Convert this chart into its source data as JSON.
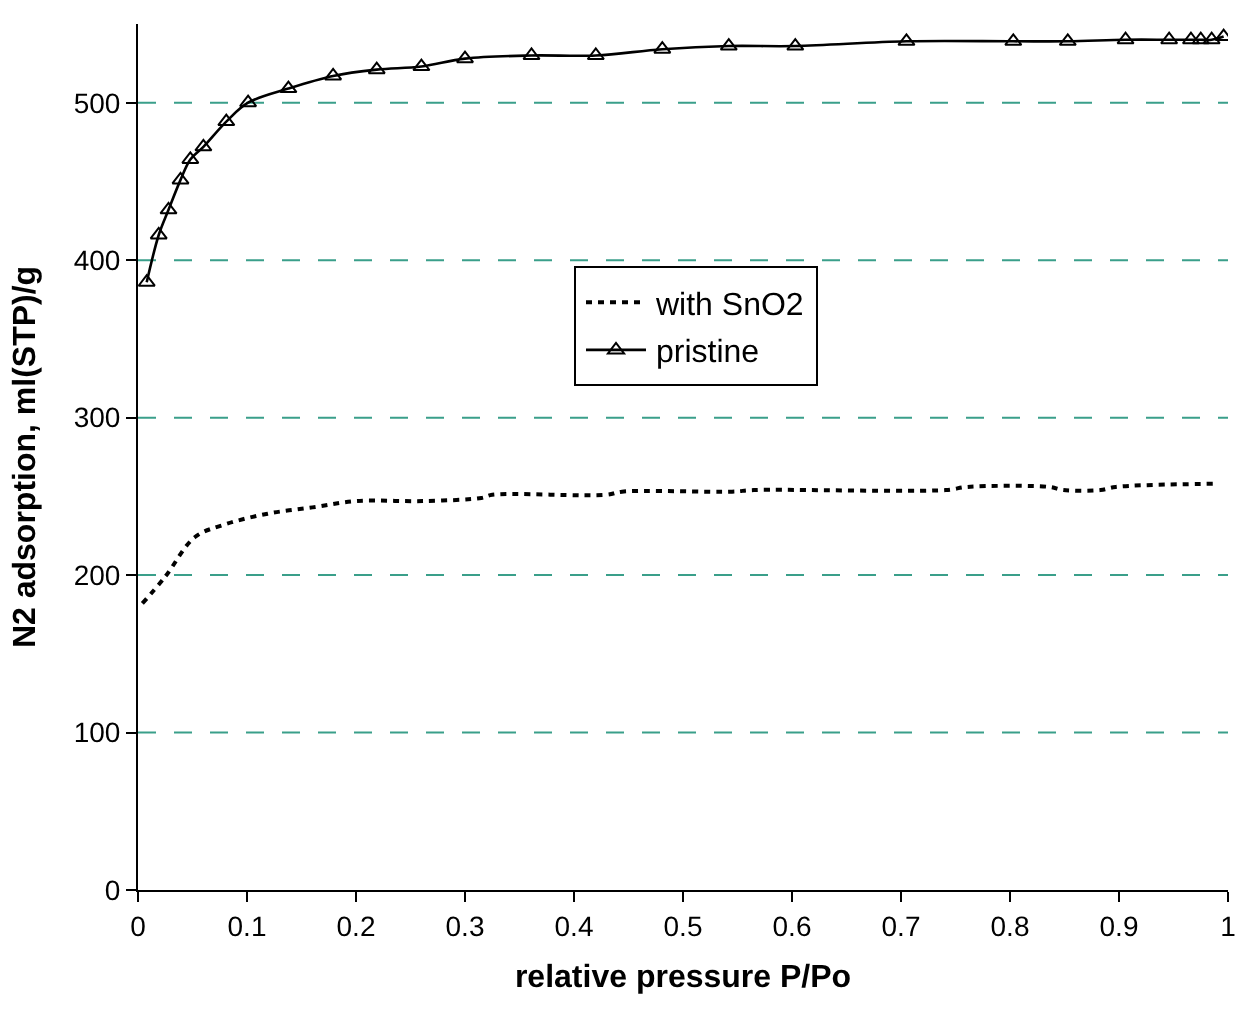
{
  "chart_data": {
    "type": "line",
    "xlabel": "relative pressure P/Po",
    "ylabel": "N2 adsorption, ml(STP)/g",
    "xlim": [
      0,
      1
    ],
    "xticks": [
      0,
      0.1,
      0.2,
      0.3,
      0.4,
      0.5,
      0.6,
      0.7,
      0.8,
      0.9,
      1
    ],
    "ylim": [
      0,
      550
    ],
    "yticks": [
      0,
      100,
      200,
      300,
      400,
      500
    ],
    "grid": "y",
    "legend": "right",
    "series": [
      {
        "name": "with SnO2",
        "color": "#000000",
        "line_style": "dotted",
        "marker": "none",
        "x": [
          0.004,
          0.025,
          0.052,
          0.079,
          0.119,
          0.16,
          0.2,
          0.261,
          0.315,
          0.325,
          0.43,
          0.444,
          0.545,
          0.565,
          0.741,
          0.761,
          0.836,
          0.849,
          0.883,
          0.897,
          0.988
        ],
        "values": [
          182,
          199,
          224,
          232,
          239,
          243,
          247,
          247,
          249,
          251,
          251,
          253,
          253,
          254,
          254,
          256,
          256,
          254,
          254,
          256,
          258
        ]
      },
      {
        "name": "pristine",
        "color": "#000000",
        "line_style": "solid",
        "marker": "triangle",
        "x": [
          0.008,
          0.019,
          0.028,
          0.039,
          0.048,
          0.06,
          0.081,
          0.101,
          0.138,
          0.179,
          0.219,
          0.26,
          0.3,
          0.361,
          0.42,
          0.481,
          0.542,
          0.603,
          0.705,
          0.803,
          0.853,
          0.906,
          0.946,
          0.966,
          0.975,
          0.985,
          0.996
        ],
        "values": [
          386,
          416,
          432,
          451,
          464,
          472,
          488,
          500,
          509,
          517,
          521,
          523,
          528,
          530,
          530,
          534,
          536,
          536,
          539,
          539,
          539,
          540,
          540,
          540,
          540,
          540,
          542
        ]
      }
    ]
  }
}
